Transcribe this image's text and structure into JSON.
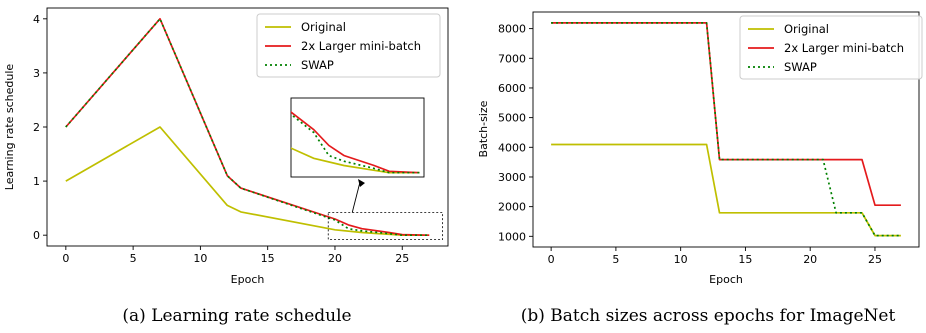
{
  "chart_data": [
    {
      "type": "line",
      "caption": "(a) Learning rate schedule",
      "xlabel": "Epoch",
      "ylabel": "Learning rate schedule",
      "xlim": [
        -1.4,
        28.4
      ],
      "ylim": [
        -0.2,
        4.2
      ],
      "xticks": [
        0,
        5,
        10,
        15,
        20,
        25
      ],
      "yticks": [
        0,
        1,
        2,
        3,
        4
      ],
      "grid": false,
      "legend_position": "top-right",
      "series": [
        {
          "name": "Original",
          "color": "#bfbf00",
          "style": "solid",
          "x": [
            0,
            7,
            12,
            13,
            20,
            22,
            25,
            27
          ],
          "y": [
            1.0,
            2.0,
            0.55,
            0.43,
            0.1,
            0.05,
            0.0,
            0.0
          ]
        },
        {
          "name": "2x Larger mini-batch",
          "color": "#e41a1c",
          "style": "solid",
          "x": [
            0,
            7,
            12,
            13,
            20,
            21,
            22,
            24,
            25,
            27
          ],
          "y": [
            2.0,
            4.0,
            1.1,
            0.87,
            0.3,
            0.19,
            0.12,
            0.05,
            0.01,
            0.0
          ]
        },
        {
          "name": "SWAP",
          "color": "#008000",
          "style": "dotted",
          "x": [
            0,
            7,
            12,
            13,
            20,
            21,
            22,
            24,
            25,
            27
          ],
          "y": [
            2.0,
            4.0,
            1.1,
            0.87,
            0.28,
            0.12,
            0.08,
            0.03,
            0.0,
            0.0
          ]
        }
      ],
      "inset": {
        "source_region_x": [
          19.5,
          28
        ],
        "source_region_y": [
          -0.08,
          0.42
        ],
        "note_arrow": "zoom"
      }
    },
    {
      "type": "line",
      "caption": "(b) Batch sizes across epochs for ImageNet",
      "xlabel": "Epoch",
      "ylabel": "Batch-size",
      "xlim": [
        -1.4,
        28.4
      ],
      "ylim": [
        640,
        8560
      ],
      "xticks": [
        0,
        5,
        10,
        15,
        20,
        25
      ],
      "yticks": [
        1000,
        2000,
        3000,
        4000,
        5000,
        6000,
        7000,
        8000
      ],
      "grid": false,
      "legend_position": "top-right",
      "series": [
        {
          "name": "Original",
          "color": "#bfbf00",
          "style": "solid",
          "x": [
            0,
            12,
            13,
            24,
            25,
            27
          ],
          "y": [
            4096,
            4096,
            1792,
            1792,
            1024,
            1024
          ]
        },
        {
          "name": "2x Larger mini-batch",
          "color": "#e41a1c",
          "style": "solid",
          "x": [
            0,
            12,
            13,
            24,
            25,
            27
          ],
          "y": [
            8192,
            8192,
            3584,
            3584,
            2048,
            2048
          ]
        },
        {
          "name": "SWAP",
          "color": "#008000",
          "style": "dotted",
          "x": [
            0,
            12,
            13,
            21,
            22,
            24,
            25,
            27
          ],
          "y": [
            8192,
            8192,
            3584,
            3584,
            1792,
            1792,
            1024,
            1024
          ]
        }
      ]
    }
  ]
}
